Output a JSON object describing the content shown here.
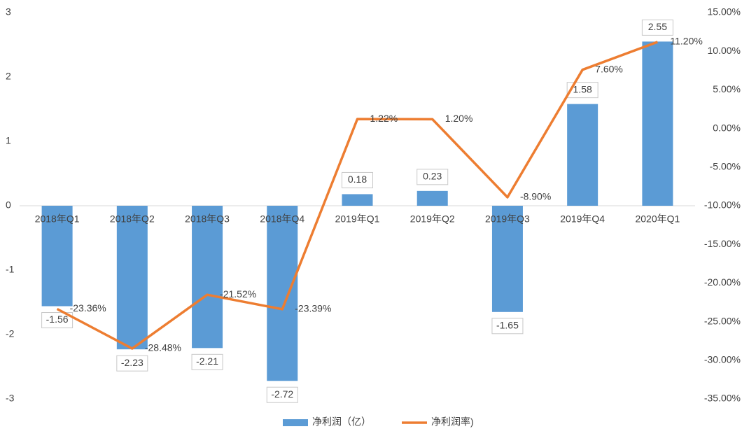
{
  "chart_data": {
    "type": "bar_line",
    "categories": [
      "2018年Q1",
      "2018年Q2",
      "2018年Q3",
      "2018年Q4",
      "2019年Q1",
      "2019年Q2",
      "2019年Q3",
      "2019年Q4",
      "2020年Q1"
    ],
    "series": [
      {
        "name": "净利润（亿）",
        "type": "bar",
        "color": "#5b9bd5",
        "values": [
          -1.56,
          -2.23,
          -2.21,
          -2.72,
          0.18,
          0.23,
          -1.65,
          1.58,
          2.55
        ]
      },
      {
        "name": "净利润率)",
        "type": "line",
        "axis": "y2",
        "color": "#ed7d31",
        "values": [
          -23.36,
          -28.48,
          -21.52,
          -23.39,
          1.22,
          1.2,
          -8.9,
          7.6,
          11.2
        ],
        "value_labels": [
          "-23.36%",
          "-28.48%",
          "-21.52%",
          "-23.39%",
          "1.22%",
          "1.20%",
          "-8.90%",
          "7.60%",
          "11.20%"
        ]
      }
    ],
    "ylim": [
      -3,
      3
    ],
    "yticks": [
      -3,
      -2,
      -1,
      0,
      1,
      2,
      3
    ],
    "y2lim": [
      -35,
      15
    ],
    "y2ticks": [
      {
        "value": -35,
        "label": "-35.00%"
      },
      {
        "value": -30,
        "label": "-30.00%"
      },
      {
        "value": -25,
        "label": "-25.00%"
      },
      {
        "value": -20,
        "label": "-20.00%"
      },
      {
        "value": -15,
        "label": "-15.00%"
      },
      {
        "value": -10,
        "label": "-10.00%"
      },
      {
        "value": -5,
        "label": "-5.00%"
      },
      {
        "value": 0,
        "label": "0.00%"
      },
      {
        "value": 5,
        "label": "5.00%"
      },
      {
        "value": 10,
        "label": "10.00%"
      },
      {
        "value": 15,
        "label": "15.00%"
      }
    ],
    "grid": false,
    "legend": "bottom"
  }
}
